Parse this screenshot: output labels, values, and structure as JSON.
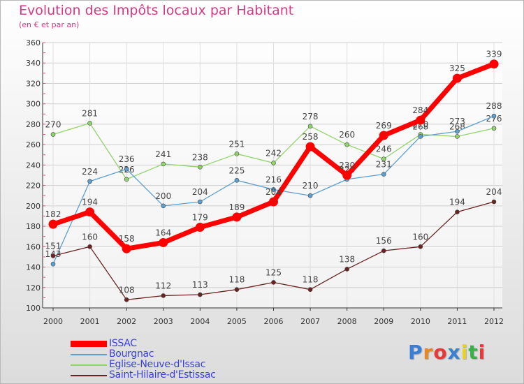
{
  "chart_data": {
    "type": "line",
    "title": "Evolution des Impôts locaux par Habitant",
    "subtitle": "(en € et par an)",
    "categories": [
      "2000",
      "2001",
      "2002",
      "2003",
      "2004",
      "2005",
      "2006",
      "2007",
      "2008",
      "2009",
      "2010",
      "2011",
      "2012"
    ],
    "ylim": [
      100,
      360
    ],
    "yticks": [
      100,
      120,
      140,
      160,
      180,
      200,
      220,
      240,
      260,
      280,
      300,
      320,
      340,
      360
    ],
    "grid": true,
    "legend_position": "bottom-left",
    "series": [
      {
        "name": "Eglise-Neuve-d'Issac",
        "color": "#8fd46a",
        "values": [
          270,
          281,
          226,
          241,
          238,
          251,
          242,
          278,
          260,
          246,
          270,
          268,
          276
        ],
        "labels": [
          "270",
          "281",
          "226",
          "241",
          "238",
          "251",
          "242",
          "278",
          "260",
          "246",
          "270",
          "268",
          "276"
        ]
      },
      {
        "name": "Bourgnac",
        "color": "#5d9fd0",
        "values": [
          143,
          224,
          236,
          200,
          204,
          225,
          216,
          210,
          226,
          231,
          268,
          273,
          288
        ],
        "labels": [
          "143",
          "224",
          "236",
          "200",
          "204",
          "225",
          "216",
          "210",
          "226",
          "231",
          "268",
          "273",
          "288"
        ]
      },
      {
        "name": "Saint-Hilaire-d'Estissac",
        "color": "#6b2222",
        "values": [
          151,
          160,
          108,
          112,
          113,
          118,
          125,
          118,
          138,
          156,
          160,
          194,
          204
        ],
        "labels": [
          "151",
          "160",
          "108",
          "112",
          "113",
          "118",
          "125",
          "118",
          "138",
          "156",
          "160",
          "194",
          "204"
        ]
      },
      {
        "name": "ISSAC",
        "color": "#ff0000",
        "values": [
          182,
          194,
          158,
          164,
          179,
          189,
          204,
          258,
          230,
          269,
          284,
          325,
          339
        ],
        "labels": [
          "182",
          "194",
          "158",
          "164",
          "179",
          "189",
          "204",
          "258",
          "230",
          "269",
          "284",
          "325",
          "339"
        ]
      }
    ]
  },
  "legend": [
    {
      "name": "ISSAC",
      "color": "#ff0000"
    },
    {
      "name": "Bourgnac",
      "color": "#5d9fd0"
    },
    {
      "name": "Eglise-Neuve-d'Issac",
      "color": "#8fd46a"
    },
    {
      "name": "Saint-Hilaire-d'Estissac",
      "color": "#6b2222"
    }
  ],
  "logo": {
    "text": "Proxiti",
    "colors": [
      "#3a7fd6",
      "#e8862a",
      "#e83a3a",
      "#3a7fd6",
      "#e8d22a",
      "#3ab04a",
      "#e83a3a"
    ]
  }
}
